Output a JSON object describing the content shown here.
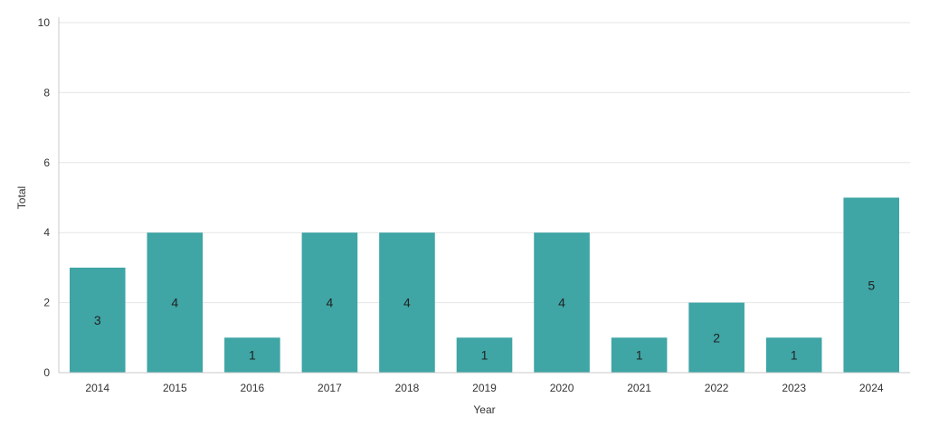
{
  "chart_data": {
    "type": "bar",
    "title": "",
    "xlabel": "Year",
    "ylabel": "Total",
    "categories": [
      "2014",
      "2015",
      "2016",
      "2017",
      "2018",
      "2019",
      "2020",
      "2021",
      "2022",
      "2023",
      "2024"
    ],
    "values": [
      3,
      4,
      1,
      4,
      4,
      1,
      4,
      1,
      2,
      1,
      5
    ],
    "ylim": [
      0,
      10
    ],
    "yticks": [
      0,
      2,
      4,
      6,
      8,
      10
    ],
    "grid": true,
    "legend": "none",
    "bar_color": "#3fa5a5",
    "data_labels": true
  }
}
